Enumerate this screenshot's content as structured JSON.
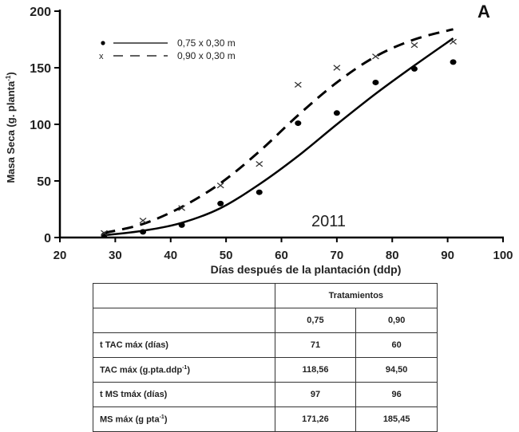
{
  "chart_data": {
    "type": "scatter",
    "title": "",
    "panel_label": "A",
    "annotation": "2011",
    "xlabel": "Días después de la plantación (ddp)",
    "ylabel": "Masa Seca (g. planta-1)",
    "xlim": [
      20,
      100
    ],
    "ylim": [
      0,
      200
    ],
    "xticks": [
      20,
      30,
      40,
      50,
      60,
      70,
      80,
      90,
      100
    ],
    "yticks": [
      0,
      50,
      100,
      150,
      200
    ],
    "grid": false,
    "legend_position": "upper-left",
    "series": [
      {
        "name": "0,75 x 0,30 m",
        "marker": "dot",
        "line": "solid",
        "x": [
          28,
          35,
          42,
          49,
          56,
          63,
          70,
          77,
          84,
          91
        ],
        "y": [
          2,
          5,
          11,
          30,
          40,
          101,
          110,
          137,
          149,
          155
        ],
        "fit_curve": {
          "x": [
            28,
            35,
            42,
            49,
            56,
            63,
            70,
            77,
            84,
            91
          ],
          "y": [
            2,
            6,
            13,
            26,
            47,
            72,
            100,
            127,
            152,
            176
          ]
        }
      },
      {
        "name": "0,90 x 0,30 m",
        "marker": "x",
        "line": "dashed",
        "x": [
          28,
          35,
          42,
          49,
          56,
          63,
          70,
          77,
          84,
          91
        ],
        "y": [
          4,
          15,
          26,
          46,
          65,
          135,
          150,
          160,
          170,
          173
        ],
        "fit_curve": {
          "x": [
            28,
            35,
            42,
            49,
            56,
            63,
            70,
            77,
            84,
            91
          ],
          "y": [
            4,
            12,
            27,
            48,
            76,
            108,
            137,
            160,
            175,
            184
          ]
        }
      }
    ]
  },
  "chart": {
    "panel_label": "A",
    "year": "2011",
    "xlabel": "Días después de la plantación (ddp)",
    "ylabel": "Masa Seca (g. planta",
    "ylabel_sup": "-1",
    "ylabel_end": ")",
    "xticks": [
      "20",
      "30",
      "40",
      "50",
      "60",
      "70",
      "80",
      "90",
      "100"
    ],
    "yticks": [
      "0",
      "50",
      "100",
      "150",
      "200"
    ],
    "legend": [
      {
        "label": "0,75 x 0,30 m"
      },
      {
        "label": "0,90 x 0,30 m"
      }
    ]
  },
  "table": {
    "header": "Tratamientos",
    "columns": [
      "0,75",
      "0,90"
    ],
    "rows": [
      {
        "label": "t TAC máx (días)",
        "sup": "",
        "label_end": "",
        "values": [
          "71",
          "60"
        ]
      },
      {
        "label": "TAC máx (g.pta.ddp",
        "sup": "-1",
        "label_end": ")",
        "values": [
          "118,56",
          "94,50"
        ]
      },
      {
        "label": "t MS tmáx (días)",
        "sup": "",
        "label_end": "",
        "values": [
          "97",
          "96"
        ]
      },
      {
        "label": "MS máx (g pta",
        "sup": "-1",
        "label_end": ")",
        "values": [
          "171,26",
          "185,45"
        ]
      }
    ]
  }
}
